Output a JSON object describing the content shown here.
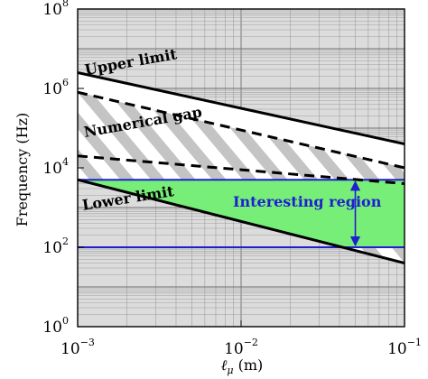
{
  "chart_data": {
    "type": "line",
    "xscale": "log",
    "yscale": "log",
    "xlim": [
      0.001,
      0.1
    ],
    "ylim": [
      1,
      100000000
    ],
    "xlabel_main": "ℓ",
    "xlabel_sub": "μ",
    "xlabel_unit": "(m)",
    "ylabel": "Frequency (Hz)",
    "grid": true,
    "x_ticks": [
      {
        "base": "10",
        "exp": "−3",
        "value": 0.001
      },
      {
        "base": "10",
        "exp": "−2",
        "value": 0.01
      },
      {
        "base": "10",
        "exp": "−1",
        "value": 0.1
      }
    ],
    "y_ticks": [
      {
        "base": "10",
        "exp": "0",
        "value": 1
      },
      {
        "base": "10",
        "exp": "2",
        "value": 100
      },
      {
        "base": "10",
        "exp": "4",
        "value": 10000
      },
      {
        "base": "10",
        "exp": "6",
        "value": 1000000
      },
      {
        "base": "10",
        "exp": "8",
        "value": 100000000
      }
    ],
    "series": [
      {
        "name": "Upper limit",
        "style": "solid",
        "color": "#000000",
        "x": [
          0.001,
          0.1
        ],
        "y": [
          2500000,
          40000
        ]
      },
      {
        "name": "Numerical gap",
        "style": "dashed",
        "color": "#000000",
        "x": [
          0.001,
          0.1
        ],
        "y": [
          800000,
          10000
        ]
      },
      {
        "name": "",
        "style": "dashed",
        "color": "#000000",
        "x": [
          0.001,
          0.1
        ],
        "y": [
          20000,
          4000
        ]
      },
      {
        "name": "Lower limit",
        "style": "solid",
        "color": "#000000",
        "x": [
          0.001,
          0.1
        ],
        "y": [
          5000,
          40
        ]
      }
    ],
    "hlines": [
      {
        "y": 5000,
        "color": "#1f1fd0"
      },
      {
        "y": 100,
        "color": "#1f1fd0"
      }
    ],
    "regions": [
      {
        "name": "Interesting region",
        "color": "#77ee77",
        "y_low": 100,
        "y_high": 5000
      }
    ],
    "double_arrow": {
      "x": 0.05,
      "y1": 100,
      "y2": 5000,
      "color": "#1f1fd0"
    },
    "annotations": {
      "upper": "Upper limit",
      "gap": "Numerical gap",
      "lower": "Lower limit",
      "interesting": "Interesting region"
    },
    "colors": {
      "background": "#dcdcdc",
      "hatch": "#c4c4c4",
      "blue": "#1f1fd0",
      "green": "#77ee77"
    }
  }
}
